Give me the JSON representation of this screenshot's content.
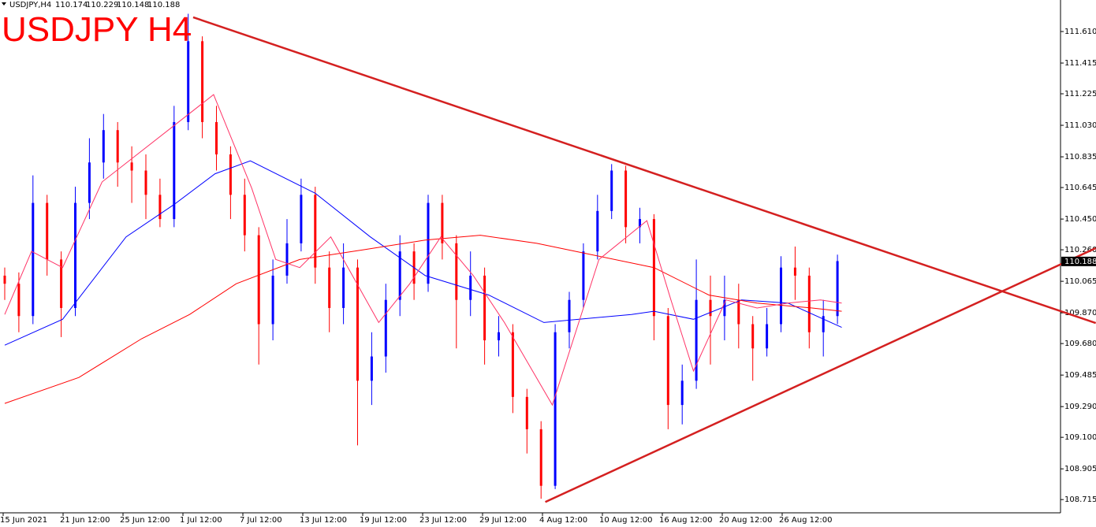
{
  "chart_data": {
    "type": "candlestick",
    "symbol": "USDJPY,H4",
    "header_values": [
      110.174,
      110.229,
      110.148,
      110.188
    ],
    "title": "USDJPY H4",
    "up_color": "#0000ff",
    "down_color": "#ff0000",
    "ylim": [
      108.633,
      111.805
    ],
    "yticks": [
      {
        "value": 111.61,
        "label": "111.610"
      },
      111.415,
      111.225,
      {
        "value": 111.03,
        "label": "111.030"
      },
      110.835,
      110.645,
      {
        "value": 110.45,
        "label": "110.450"
      },
      {
        "value": 110.26,
        "label": "110.260"
      },
      110.065,
      {
        "value": 109.87,
        "label": "109.870"
      },
      {
        "value": 109.68,
        "label": "109.680"
      },
      109.485,
      {
        "value": 109.29,
        "label": "109.290"
      },
      {
        "value": 109.1,
        "label": "109.100"
      },
      108.905,
      108.715
    ],
    "time_labels": [
      "15 Jun 2021",
      "21 Jun 12:00",
      "25 Jun 12:00",
      "1 Jul 12:00",
      "7 Jul 12:00",
      "13 Jul 12:00",
      "19 Jul 12:00",
      "23 Jul 12:00",
      "29 Jul 12:00",
      "4 Aug 12:00",
      "10 Aug 12:00",
      "16 Aug 12:00",
      "20 Aug 12:00",
      "26 Aug 12:00"
    ],
    "current_price": 110.188,
    "open": [
      110.1,
      110.05,
      109.85,
      110.55,
      110.2,
      109.9,
      110.55,
      110.8,
      111.0,
      110.8,
      110.75,
      110.6,
      110.45,
      111.05,
      111.55,
      111.05,
      110.85,
      110.6,
      110.35,
      109.8,
      110.1,
      110.3,
      110.6,
      110.15,
      109.9,
      110.15,
      109.45,
      109.6,
      109.95,
      110.25,
      110.05,
      110.55,
      110.3,
      109.95,
      110.1,
      109.7,
      109.75,
      109.35,
      109.15,
      108.8,
      109.75,
      109.95,
      110.25,
      110.5,
      110.75,
      110.4,
      110.45,
      109.85,
      109.3,
      109.45,
      109.95,
      109.85,
      109.95,
      109.8,
      109.65,
      109.8,
      110.15,
      110.1,
      109.75,
      109.85
    ],
    "high": [
      110.15,
      110.12,
      110.72,
      110.6,
      110.25,
      110.65,
      110.95,
      111.1,
      111.05,
      110.9,
      110.85,
      110.7,
      111.15,
      111.72,
      111.58,
      111.15,
      110.9,
      110.7,
      110.4,
      110.2,
      110.45,
      110.7,
      110.65,
      110.25,
      110.3,
      110.2,
      109.75,
      110.05,
      110.35,
      110.3,
      110.6,
      110.6,
      110.35,
      110.25,
      110.15,
      109.85,
      109.8,
      109.4,
      109.2,
      109.8,
      110.0,
      110.3,
      110.6,
      110.79,
      110.78,
      110.52,
      110.48,
      109.9,
      109.55,
      110.2,
      110.1,
      110.1,
      110.05,
      109.85,
      109.9,
      110.22,
      110.28,
      110.15,
      109.95,
      110.23
    ],
    "low": [
      109.95,
      109.75,
      109.8,
      110.1,
      109.72,
      109.85,
      110.45,
      110.7,
      110.65,
      110.55,
      110.45,
      110.4,
      110.4,
      111.0,
      110.95,
      110.75,
      110.45,
      110.25,
      109.55,
      109.7,
      110.05,
      110.25,
      110.05,
      109.75,
      109.8,
      109.05,
      109.3,
      109.5,
      109.85,
      109.95,
      110.0,
      110.2,
      109.65,
      109.85,
      109.55,
      109.6,
      109.25,
      109.0,
      108.72,
      108.78,
      109.65,
      109.9,
      110.2,
      110.45,
      110.3,
      110.3,
      109.7,
      109.15,
      109.18,
      109.4,
      109.55,
      109.7,
      109.65,
      109.45,
      109.6,
      109.75,
      109.95,
      109.65,
      109.6,
      109.8
    ],
    "close": [
      110.05,
      109.85,
      110.55,
      110.2,
      109.9,
      110.55,
      110.8,
      111.0,
      110.8,
      110.75,
      110.6,
      110.45,
      111.05,
      111.55,
      111.05,
      110.85,
      110.6,
      110.35,
      109.8,
      110.1,
      110.3,
      110.6,
      110.15,
      109.9,
      110.15,
      109.45,
      109.6,
      109.95,
      110.25,
      110.05,
      110.55,
      110.3,
      109.95,
      110.1,
      109.7,
      109.75,
      109.35,
      109.15,
      108.8,
      109.75,
      109.95,
      110.25,
      110.5,
      110.75,
      110.4,
      110.45,
      109.85,
      109.3,
      109.45,
      109.95,
      109.85,
      109.95,
      109.8,
      109.65,
      109.8,
      110.15,
      110.1,
      109.75,
      109.85,
      110.19
    ],
    "series": [
      {
        "color": "#0000ff",
        "x": [
          0,
          4.1,
          8.6,
          12,
          14.9,
          17.4,
          22,
          25.9,
          29.8,
          34.3,
          38.2,
          44.4,
          46,
          48.8,
          52.2,
          55.5,
          59.3
        ],
        "values": [
          109.67,
          109.83,
          110.34,
          110.54,
          110.73,
          110.81,
          110.61,
          110.34,
          110.1,
          109.98,
          109.81,
          109.86,
          109.88,
          109.83,
          109.95,
          109.93,
          109.78
        ]
      },
      {
        "color": "#ff0000",
        "x": [
          0,
          5.25,
          9.7,
          13.1,
          16.4,
          20.9,
          25.4,
          29.8,
          33.7,
          37.7,
          42.1,
          46,
          49.9,
          53.3,
          57.2,
          59.3
        ],
        "values": [
          109.31,
          109.47,
          109.71,
          109.86,
          110.05,
          110.2,
          110.26,
          110.32,
          110.35,
          110.3,
          110.22,
          110.15,
          109.98,
          109.93,
          109.9,
          109.88
        ]
      },
      {
        "color": "#ff3366",
        "x": [
          0,
          1.9,
          4.1,
          6.9,
          14.8,
          17.5,
          19.2,
          20.9,
          23.1,
          26.5,
          28.7,
          30.9,
          33.2,
          35.4,
          38.8,
          42.1,
          45.5,
          47.2,
          48.8,
          51.1,
          53.3,
          55.5,
          57.8,
          59.3
        ],
        "values": [
          109.86,
          110.25,
          110.15,
          110.68,
          111.22,
          110.64,
          110.2,
          110.15,
          110.34,
          109.81,
          110.05,
          110.34,
          110.1,
          109.81,
          109.3,
          110.2,
          110.44,
          109.95,
          109.51,
          109.95,
          109.9,
          109.93,
          109.95,
          109.93
        ]
      }
    ],
    "trendlines": [
      {
        "color": "#d42020",
        "x": [
          13.35,
          77.3
        ],
        "values": [
          111.698,
          109.807
        ]
      },
      {
        "color": "#d42020",
        "x": [
          38.3,
          77.3
        ],
        "values": [
          108.7,
          110.27
        ]
      }
    ]
  }
}
